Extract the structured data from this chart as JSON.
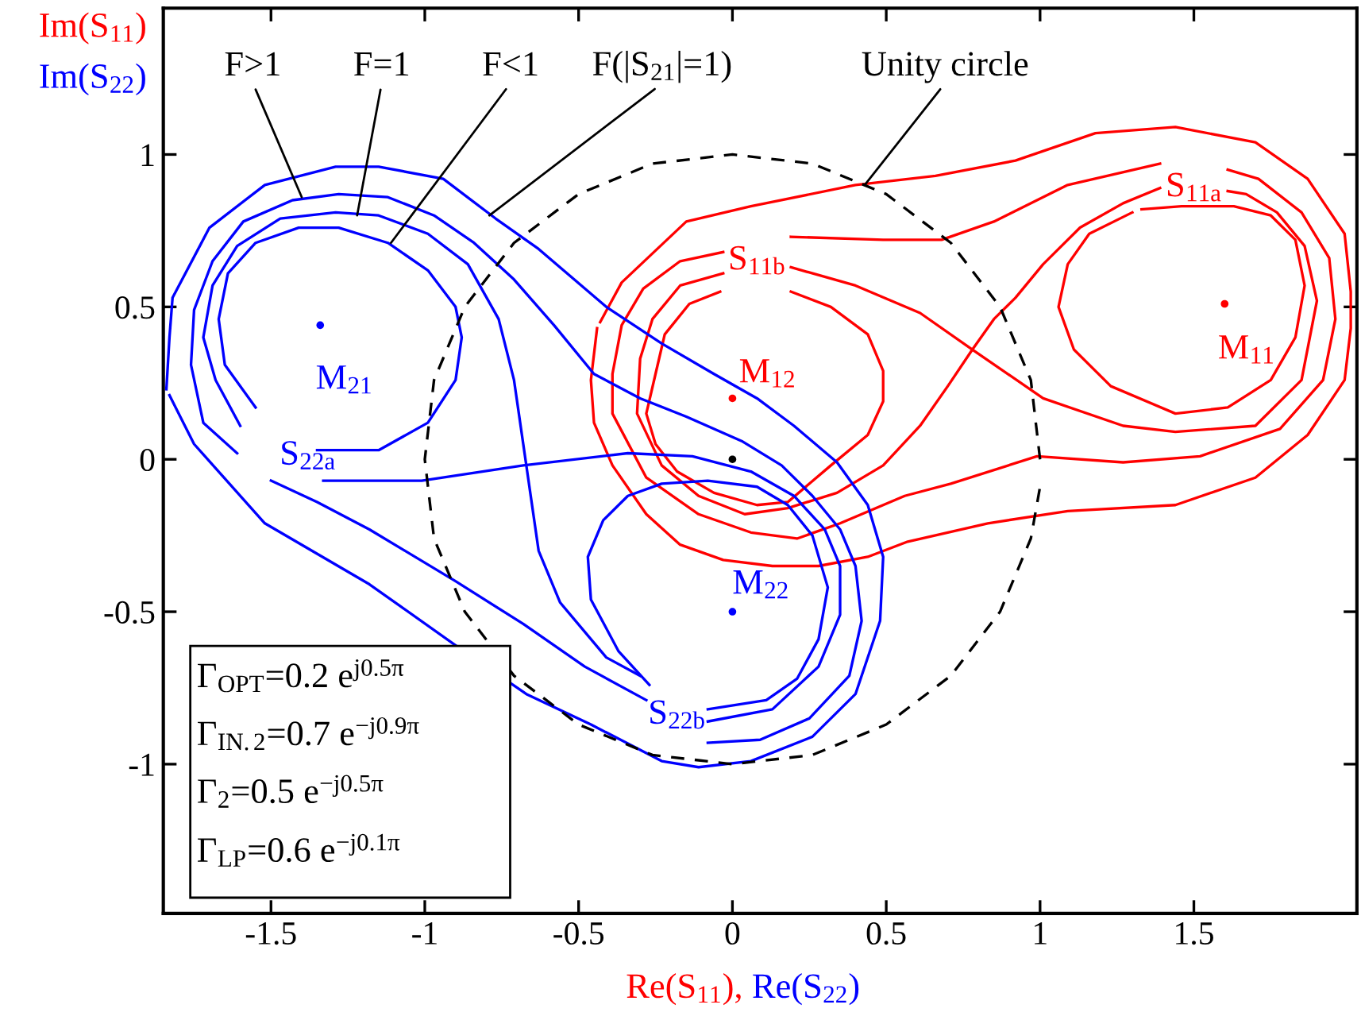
{
  "chart_data": {
    "type": "line",
    "xlabel": "Re(S$_{11}$), Re(S$_{22}$)",
    "ylabel": "Im(S$_{11}$)\nIm(S$_{22}$)",
    "xlim": [
      -1.85,
      2.03
    ],
    "ylim": [
      -1.49,
      1.48
    ],
    "xticks": [
      -1.5,
      -1,
      -0.5,
      0,
      0.5,
      1,
      1.5
    ],
    "yticks": [
      -1,
      -0.5,
      0,
      0.5,
      1
    ],
    "marker": "none",
    "line_style": "solid",
    "series": [
      {
        "color": "#ff0000",
        "x": [
          -0.04,
          -0.14,
          -0.22,
          -0.25,
          -0.28,
          -0.25,
          -0.18,
          -0.06,
          0.08,
          0.18,
          0.32,
          0.44,
          0.49,
          0.49,
          0.44,
          0.32,
          0.19
        ],
        "values": [
          0.55,
          0.51,
          0.41,
          0.28,
          0.15,
          0.05,
          -0.04,
          -0.11,
          -0.15,
          -0.14,
          -0.02,
          0.08,
          0.19,
          0.29,
          0.41,
          0.5,
          0.55
        ]
      },
      {
        "color": "#ff0000",
        "x": [
          1.39,
          1.27,
          1.13,
          1.01,
          0.92,
          0.85,
          0.78,
          0.7,
          0.61,
          0.49,
          0.34,
          0.18,
          0.04,
          -0.11,
          -0.23,
          -0.31,
          -0.3,
          -0.26,
          -0.17,
          -0.03
        ],
        "values": [
          0.89,
          0.84,
          0.76,
          0.64,
          0.53,
          0.46,
          0.36,
          0.24,
          0.11,
          -0.02,
          -0.11,
          -0.16,
          -0.18,
          -0.12,
          -0.02,
          0.15,
          0.33,
          0.46,
          0.57,
          0.61
        ]
      },
      {
        "color": "#ff0000",
        "x": [
          -0.03,
          -0.17,
          -0.29,
          -0.36,
          -0.39,
          -0.39,
          -0.28,
          -0.11,
          0.06,
          0.21,
          0.35,
          0.56,
          0.71,
          0.99,
          1.27,
          1.52,
          1.78,
          1.92,
          1.96,
          1.94,
          1.85,
          1.71,
          1.61
        ],
        "values": [
          0.68,
          0.65,
          0.56,
          0.44,
          0.28,
          0.15,
          -0.06,
          -0.18,
          -0.24,
          -0.26,
          -0.21,
          -0.12,
          -0.08,
          0.01,
          -0.01,
          0.01,
          0.1,
          0.26,
          0.46,
          0.66,
          0.81,
          0.92,
          0.95
        ]
      },
      {
        "color": "#ff0000",
        "x": [
          0.19,
          0.49,
          0.68,
          0.85,
          1.09,
          1.39
        ],
        "values": [
          0.73,
          0.72,
          0.72,
          0.78,
          0.9,
          0.97
        ]
      },
      {
        "color": "#ff0000",
        "x": [
          0.19,
          0.4,
          0.61,
          0.78,
          1.01,
          1.27,
          1.44,
          1.7,
          1.85,
          1.9,
          1.86,
          1.77,
          1.67,
          1.61
        ],
        "values": [
          0.63,
          0.57,
          0.48,
          0.36,
          0.2,
          0.11,
          0.09,
          0.11,
          0.26,
          0.52,
          0.7,
          0.81,
          0.87,
          0.88
        ]
      },
      {
        "color": "#ff0000",
        "x": [
          1.3,
          1.16,
          1.09,
          1.06,
          1.11,
          1.23,
          1.44,
          1.61,
          1.75,
          1.83,
          1.86,
          1.83,
          1.75,
          1.63,
          1.46,
          1.33
        ],
        "values": [
          0.81,
          0.74,
          0.64,
          0.5,
          0.36,
          0.24,
          0.15,
          0.17,
          0.26,
          0.4,
          0.57,
          0.72,
          0.8,
          0.83,
          0.83,
          0.82
        ]
      },
      {
        "color": "#ff0000",
        "x": [
          -0.44,
          -0.46,
          -0.45,
          -0.39,
          -0.28,
          -0.17,
          -0.03,
          0.13,
          0.28,
          0.44,
          0.57,
          0.83,
          1.09,
          1.44,
          1.7,
          1.87,
          1.99,
          2.01,
          2.01,
          1.99,
          1.87,
          1.7,
          1.44,
          1.18,
          0.92,
          0.66,
          0.4,
          0.06,
          -0.15,
          -0.36,
          -0.43
        ],
        "values": [
          0.43,
          0.26,
          0.12,
          -0.02,
          -0.18,
          -0.28,
          -0.33,
          -0.35,
          -0.35,
          -0.32,
          -0.27,
          -0.21,
          -0.17,
          -0.15,
          -0.06,
          0.08,
          0.26,
          0.43,
          0.55,
          0.74,
          0.92,
          1.04,
          1.09,
          1.07,
          0.98,
          0.93,
          0.9,
          0.83,
          0.78,
          0.58,
          0.45
        ]
      },
      {
        "color": "#0000ff",
        "x": [
          -1.55,
          -1.65,
          -1.67,
          -1.64,
          -1.55,
          -1.41,
          -1.28,
          -1.12,
          -0.99,
          -0.9,
          -0.88,
          -0.9,
          -0.99,
          -1.15,
          -1.35
        ],
        "values": [
          0.17,
          0.31,
          0.46,
          0.61,
          0.71,
          0.76,
          0.76,
          0.71,
          0.62,
          0.5,
          0.4,
          0.26,
          0.12,
          0.03,
          0.03
        ]
      },
      {
        "color": "#0000ff",
        "x": [
          -1.6,
          -1.68,
          -1.72,
          -1.69,
          -1.61,
          -1.47,
          -1.29,
          -1.15,
          -0.99,
          -0.86,
          -0.76,
          -0.71,
          -0.68,
          -0.63,
          -0.56,
          -0.41,
          -0.3
        ],
        "values": [
          0.11,
          0.26,
          0.4,
          0.57,
          0.7,
          0.79,
          0.81,
          0.8,
          0.74,
          0.64,
          0.46,
          0.26,
          0.05,
          -0.3,
          -0.47,
          -0.65,
          -0.71
        ]
      },
      {
        "color": "#0000ff",
        "x": [
          -1.61,
          -1.72,
          -1.76,
          -1.75,
          -1.69,
          -1.59,
          -1.43,
          -1.28,
          -1.12,
          -0.97,
          -0.84,
          -0.71,
          -0.58,
          -0.45,
          -0.3,
          -0.15,
          0.03,
          0.16,
          0.26,
          0.35,
          0.4,
          0.42,
          0.38,
          0.25,
          0.09,
          -0.08
        ],
        "values": [
          0.02,
          0.12,
          0.31,
          0.49,
          0.65,
          0.78,
          0.85,
          0.87,
          0.86,
          0.8,
          0.71,
          0.59,
          0.44,
          0.28,
          0.2,
          0.14,
          0.06,
          -0.02,
          -0.12,
          -0.23,
          -0.35,
          -0.53,
          -0.71,
          -0.85,
          -0.92,
          -0.93
        ]
      },
      {
        "color": "#0000ff",
        "x": [
          -1.33,
          -1.01,
          -0.68,
          -0.34,
          -0.13,
          0.06,
          0.2,
          0.3,
          0.35,
          0.35,
          0.28,
          0.13,
          -0.08
        ],
        "values": [
          -0.07,
          -0.07,
          -0.02,
          0.02,
          0.01,
          -0.04,
          -0.12,
          -0.23,
          -0.35,
          -0.51,
          -0.68,
          -0.82,
          -0.86
        ]
      },
      {
        "color": "#0000ff",
        "x": [
          -1.5,
          -1.35,
          -1.18,
          -0.9,
          -0.68,
          -0.48,
          -0.28
        ],
        "values": [
          -0.07,
          -0.14,
          -0.23,
          -0.4,
          -0.54,
          -0.68,
          -0.79
        ]
      },
      {
        "color": "#0000ff",
        "x": [
          -0.27,
          -0.37,
          -0.46,
          -0.47,
          -0.42,
          -0.34,
          -0.23,
          -0.08,
          0.08,
          0.18,
          0.26,
          0.31,
          0.28,
          0.21,
          0.11,
          -0.08
        ],
        "values": [
          -0.74,
          -0.63,
          -0.46,
          -0.32,
          -0.2,
          -0.12,
          -0.08,
          -0.07,
          -0.09,
          -0.15,
          -0.25,
          -0.42,
          -0.59,
          -0.72,
          -0.79,
          -0.82
        ]
      },
      {
        "color": "#0000ff",
        "x": [
          -1.84,
          -1.83,
          -1.82,
          -1.7,
          -1.52,
          -1.29,
          -1.15,
          -0.94,
          -0.77,
          -0.63,
          -0.41,
          -0.23,
          -0.06,
          0.08,
          0.2,
          0.34,
          0.44,
          0.49,
          0.48,
          0.4,
          0.26,
          0.06,
          -0.11,
          -0.23,
          -0.46,
          -0.67,
          -0.9,
          -1.18,
          -1.52,
          -1.75,
          -1.83
        ],
        "values": [
          0.23,
          0.4,
          0.53,
          0.76,
          0.9,
          0.96,
          0.96,
          0.92,
          0.79,
          0.69,
          0.5,
          0.38,
          0.28,
          0.2,
          0.11,
          -0.01,
          -0.15,
          -0.32,
          -0.53,
          -0.77,
          -0.91,
          -0.99,
          -1.01,
          -0.99,
          -0.87,
          -0.77,
          -0.61,
          -0.41,
          -0.21,
          0.05,
          0.21
        ]
      },
      {
        "color": "#000000",
        "line_style": "dashed",
        "x": [
          1,
          0.97,
          0.87,
          0.71,
          0.5,
          0.26,
          0,
          -0.26,
          -0.5,
          -0.71,
          -0.87,
          -0.97,
          -1,
          -0.97,
          -0.87,
          -0.71,
          -0.5,
          -0.26,
          0,
          0.26,
          0.5,
          0.71,
          0.87,
          0.97,
          1.0
        ],
        "values": [
          0,
          0.26,
          0.5,
          0.71,
          0.87,
          0.97,
          1,
          0.97,
          0.87,
          0.71,
          0.5,
          0.26,
          0,
          -0.26,
          -0.5,
          -0.71,
          -0.87,
          -0.97,
          -1,
          -0.97,
          -0.87,
          -0.71,
          -0.5,
          -0.26,
          -0.09
        ]
      },
      {
        "type": "scatter",
        "marker": "circle",
        "x": [
          -1.34,
          0,
          1.6,
          0,
          0
        ],
        "values": [
          0.44,
          0.2,
          0.51,
          -0.5,
          0
        ],
        "colors": [
          "#0000ff",
          "#ff0000",
          "#ff0000",
          "#0000ff",
          "#000000"
        ]
      }
    ],
    "annotations": [
      {
        "text": "F>1",
        "x": -1.4,
        "y": 0.86
      },
      {
        "text": "F=1",
        "x": -1.22,
        "y": 0.8
      },
      {
        "text": "F<1",
        "x": -1.11,
        "y": 0.71
      },
      {
        "text": "F(|S$_{21}$|=1)",
        "x": -0.79,
        "y": 0.8
      },
      {
        "text": "Unity circle",
        "x": 0.43,
        "y": 0.9
      },
      {
        "text": "M$_{21}$",
        "x": -1.34,
        "y": 0.44
      },
      {
        "text": "M$_{12}$",
        "x": 0,
        "y": 0.2
      },
      {
        "text": "M$_{11}$",
        "x": 1.6,
        "y": 0.51
      },
      {
        "text": "M$_{22}$",
        "x": 0,
        "y": -0.5
      },
      "S$_{11a}$",
      "S$_{11b}$",
      "S$_{22a}$",
      "S$_{22b}$",
      "Γ$_{OPT}$=0.2 e$^{j0.5π}$",
      "Γ$_{IN.2}$=0.7 e$^{−j0.9π}$",
      "Γ$_{2}$=0.5 e$^{−j0.5π}$",
      "Γ$_{LP}$=0.6 e$^{−j0.1π}$"
    ]
  }
}
